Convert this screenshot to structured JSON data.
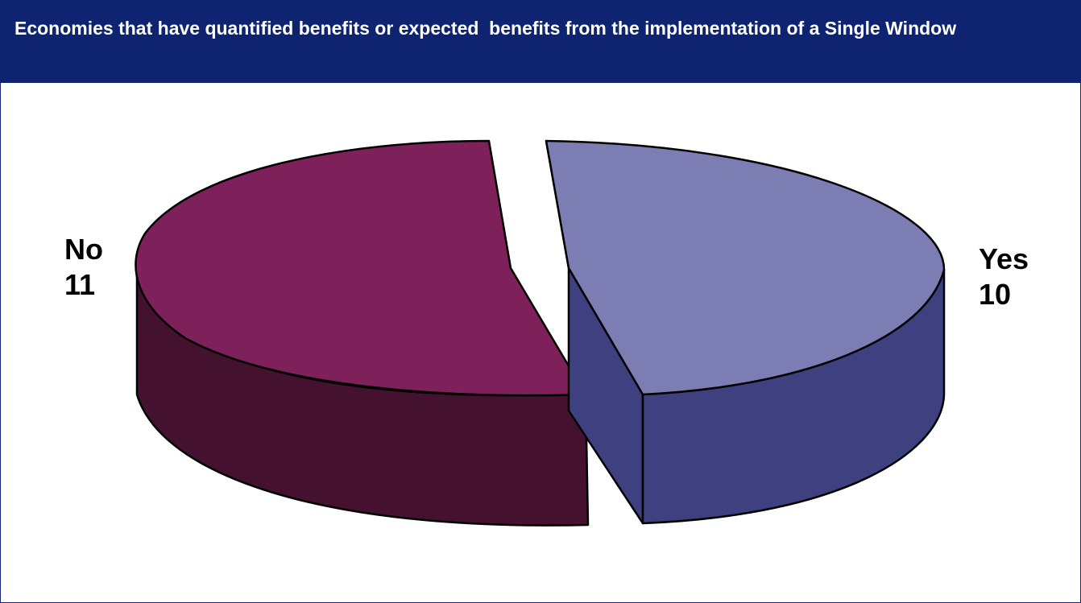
{
  "header": {
    "title": "Economies that have quantified benefits or expected  benefits from the implementation of a Single Window"
  },
  "chart_data": {
    "type": "pie",
    "style": "3d-exploded",
    "title": "Economies that have quantified benefits or expected  benefits from the implementation of a Single Window",
    "slices": [
      {
        "label": "No",
        "value": 11,
        "color_top": "#7e2059",
        "color_side": "#44112f"
      },
      {
        "label": "Yes",
        "value": 10,
        "color_top": "#7b7db3",
        "color_side": "#3e4080"
      }
    ]
  },
  "labels": {
    "no_name": "No",
    "no_value": "11",
    "yes_name": "Yes",
    "yes_value": "10"
  }
}
